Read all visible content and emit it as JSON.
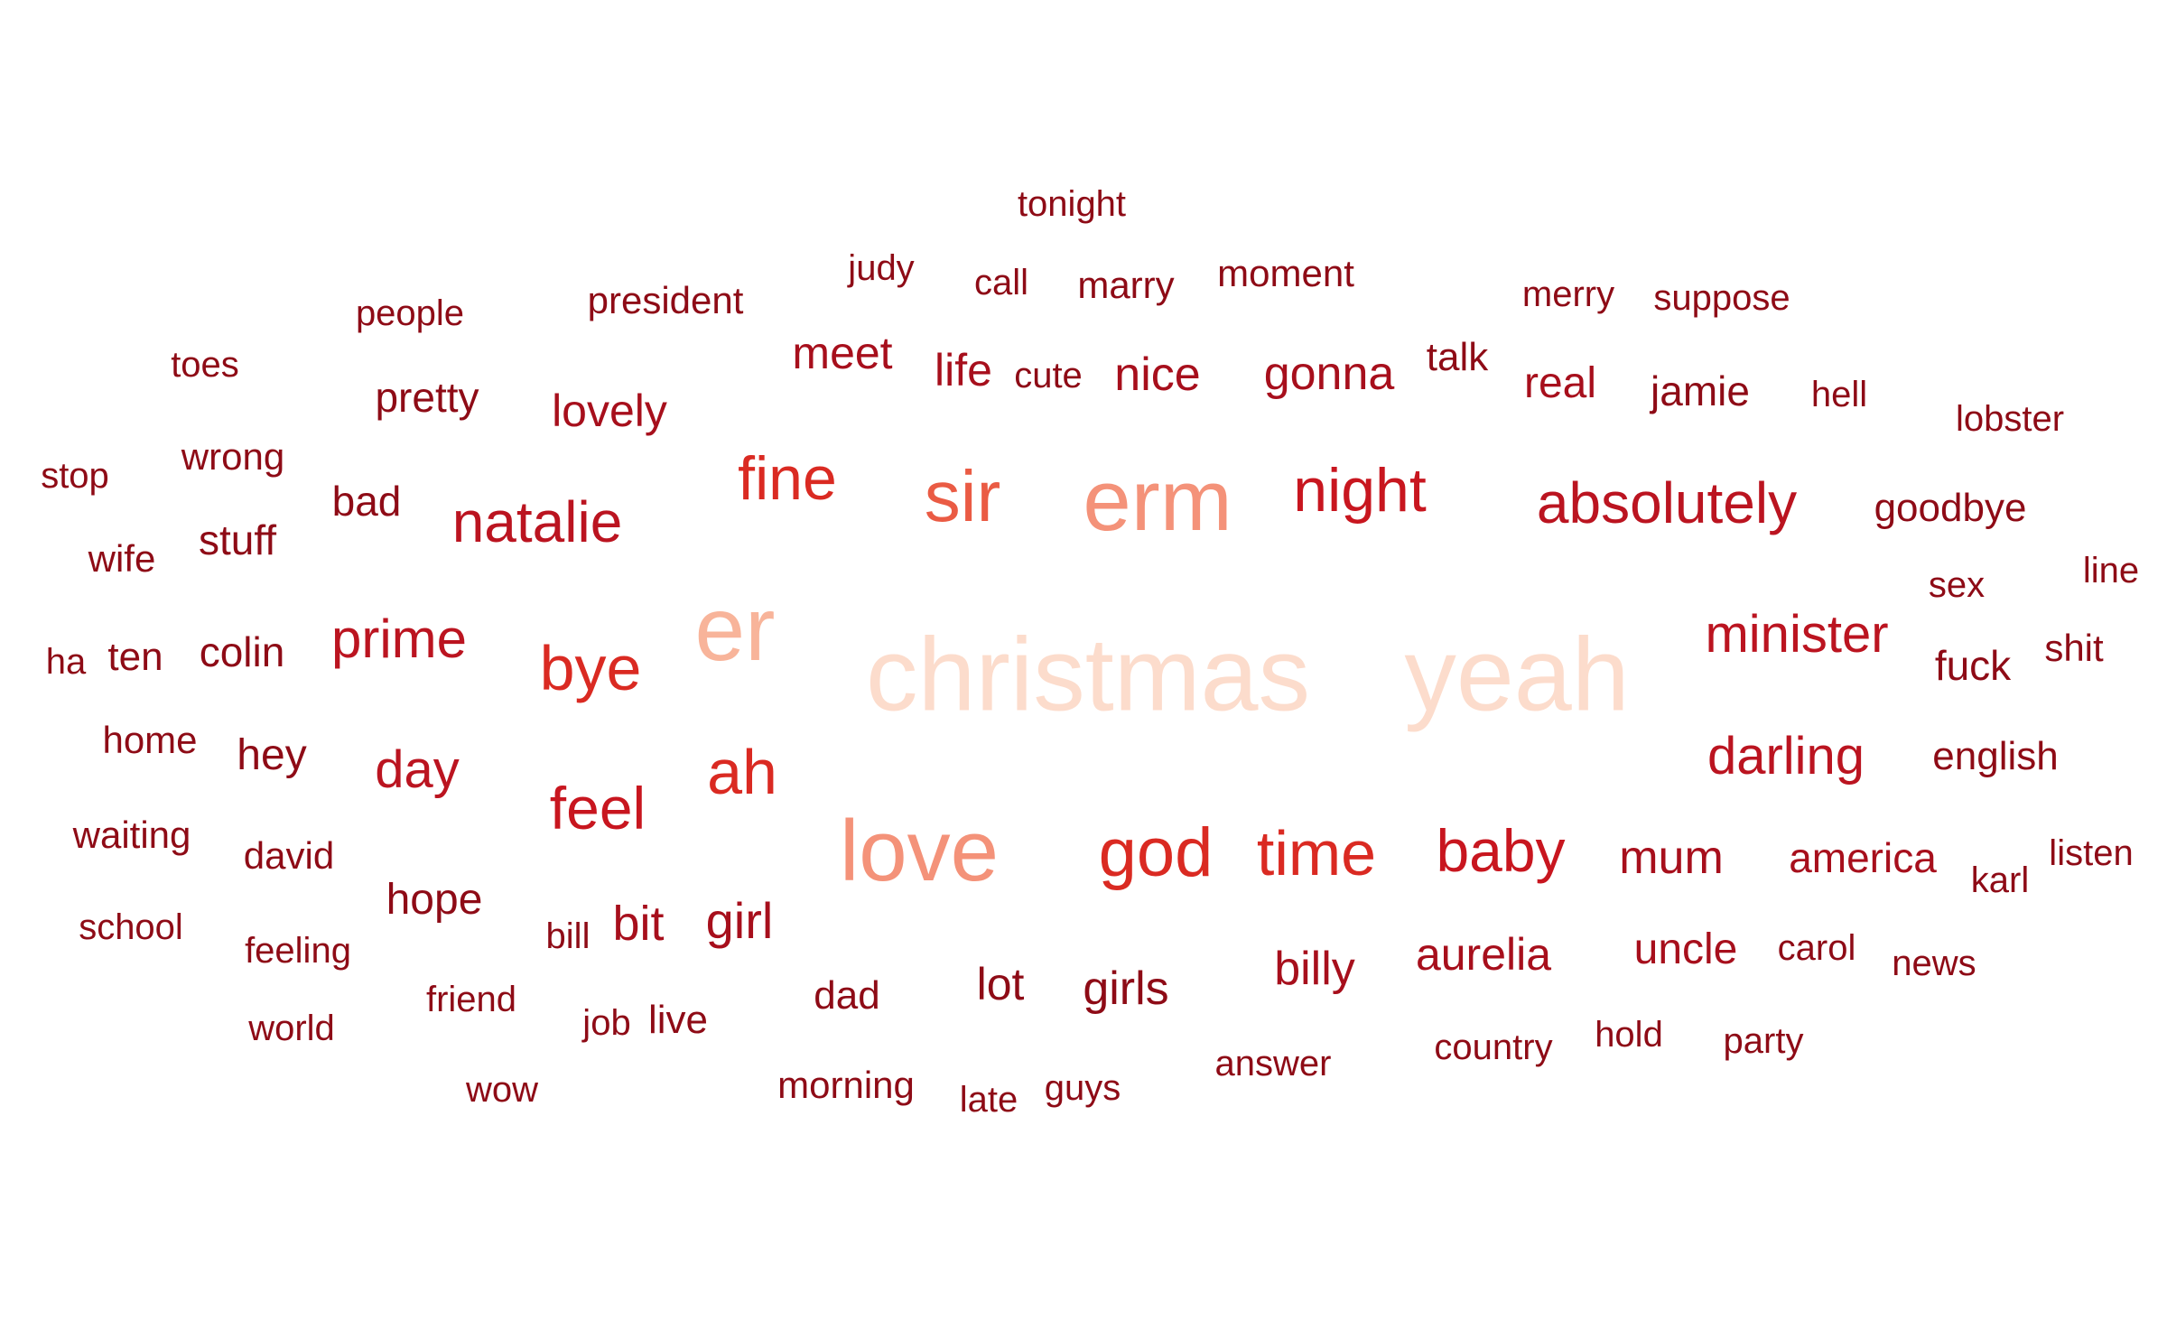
{
  "wordcloud": {
    "palette": {
      "lightest": "#fcdccc",
      "light": "#f8b49a",
      "medium_light": "#f49279",
      "medium": "#ea5b44",
      "strong": "#da2a22",
      "dark": "#bb1420",
      "darker": "#a70f1c",
      "darkest": "#8e0b16"
    },
    "words": [
      {
        "text": "christmas",
        "color": "#fcdccc"
      },
      {
        "text": "yeah",
        "color": "#fcdccc"
      },
      {
        "text": "er",
        "color": "#f8b49a"
      },
      {
        "text": "erm",
        "color": "#f49279"
      },
      {
        "text": "love",
        "color": "#f49279"
      },
      {
        "text": "sir",
        "color": "#ea5b44"
      },
      {
        "text": "god",
        "color": "#da2a22"
      },
      {
        "text": "time",
        "color": "#da2a22"
      },
      {
        "text": "baby",
        "color": "#c8161f"
      },
      {
        "text": "fine",
        "color": "#da2a22"
      },
      {
        "text": "night",
        "color": "#c8161f"
      },
      {
        "text": "absolutely",
        "color": "#bb1420"
      },
      {
        "text": "natalie",
        "color": "#bb1420"
      },
      {
        "text": "bye",
        "color": "#da2a22"
      },
      {
        "text": "ah",
        "color": "#da2a22"
      },
      {
        "text": "feel",
        "color": "#c8161f"
      },
      {
        "text": "prime",
        "color": "#bb1420"
      },
      {
        "text": "minister",
        "color": "#bb1420"
      },
      {
        "text": "darling",
        "color": "#bb1420"
      },
      {
        "text": "day",
        "color": "#bb1420"
      },
      {
        "text": "mum",
        "color": "#a70f1c"
      },
      {
        "text": "girl",
        "color": "#a70f1c"
      },
      {
        "text": "bit",
        "color": "#a70f1c"
      },
      {
        "text": "nice",
        "color": "#a70f1c"
      },
      {
        "text": "gonna",
        "color": "#a70f1c"
      },
      {
        "text": "meet",
        "color": "#a70f1c"
      },
      {
        "text": "life",
        "color": "#a70f1c"
      },
      {
        "text": "lovely",
        "color": "#a70f1c"
      },
      {
        "text": "real",
        "color": "#a70f1c"
      },
      {
        "text": "billy",
        "color": "#a70f1c"
      },
      {
        "text": "aurelia",
        "color": "#a70f1c"
      },
      {
        "text": "uncle",
        "color": "#a70f1c"
      },
      {
        "text": "america",
        "color": "#a70f1c"
      },
      {
        "text": "lot",
        "color": "#8e0b16"
      },
      {
        "text": "girls",
        "color": "#8e0b16"
      },
      {
        "text": "hope",
        "color": "#8e0b16"
      },
      {
        "text": "colin",
        "color": "#8e0b16"
      },
      {
        "text": "hey",
        "color": "#8e0b16"
      },
      {
        "text": "pretty",
        "color": "#8e0b16"
      },
      {
        "text": "bad",
        "color": "#8e0b16"
      },
      {
        "text": "stuff",
        "color": "#8e0b16"
      },
      {
        "text": "jamie",
        "color": "#8e0b16"
      },
      {
        "text": "goodbye",
        "color": "#8e0b16"
      },
      {
        "text": "fuck",
        "color": "#8e0b16"
      },
      {
        "text": "english",
        "color": "#8e0b16"
      },
      {
        "text": "talk",
        "color": "#8e0b16"
      },
      {
        "text": "dad",
        "color": "#8e0b16"
      },
      {
        "text": "ten",
        "color": "#8e0b16"
      },
      {
        "text": "tonight",
        "color": "#8e0b16"
      },
      {
        "text": "judy",
        "color": "#8e0b16"
      },
      {
        "text": "call",
        "color": "#8e0b16"
      },
      {
        "text": "marry",
        "color": "#8e0b16"
      },
      {
        "text": "moment",
        "color": "#8e0b16"
      },
      {
        "text": "merry",
        "color": "#8e0b16"
      },
      {
        "text": "suppose",
        "color": "#8e0b16"
      },
      {
        "text": "people",
        "color": "#8e0b16"
      },
      {
        "text": "president",
        "color": "#8e0b16"
      },
      {
        "text": "toes",
        "color": "#8e0b16"
      },
      {
        "text": "cute",
        "color": "#8e0b16"
      },
      {
        "text": "hell",
        "color": "#8e0b16"
      },
      {
        "text": "lobster",
        "color": "#8e0b16"
      },
      {
        "text": "stop",
        "color": "#8e0b16"
      },
      {
        "text": "wrong",
        "color": "#8e0b16"
      },
      {
        "text": "wife",
        "color": "#8e0b16"
      },
      {
        "text": "line",
        "color": "#8e0b16"
      },
      {
        "text": "sex",
        "color": "#8e0b16"
      },
      {
        "text": "ha",
        "color": "#8e0b16"
      },
      {
        "text": "shit",
        "color": "#8e0b16"
      },
      {
        "text": "home",
        "color": "#8e0b16"
      },
      {
        "text": "waiting",
        "color": "#8e0b16"
      },
      {
        "text": "david",
        "color": "#8e0b16"
      },
      {
        "text": "listen",
        "color": "#8e0b16"
      },
      {
        "text": "karl",
        "color": "#8e0b16"
      },
      {
        "text": "school",
        "color": "#8e0b16"
      },
      {
        "text": "bill",
        "color": "#8e0b16"
      },
      {
        "text": "carol",
        "color": "#8e0b16"
      },
      {
        "text": "feeling",
        "color": "#8e0b16"
      },
      {
        "text": "news",
        "color": "#8e0b16"
      },
      {
        "text": "friend",
        "color": "#8e0b16"
      },
      {
        "text": "world",
        "color": "#8e0b16"
      },
      {
        "text": "job",
        "color": "#8e0b16"
      },
      {
        "text": "live",
        "color": "#8e0b16"
      },
      {
        "text": "country",
        "color": "#8e0b16"
      },
      {
        "text": "hold",
        "color": "#8e0b16"
      },
      {
        "text": "party",
        "color": "#8e0b16"
      },
      {
        "text": "answer",
        "color": "#8e0b16"
      },
      {
        "text": "wow",
        "color": "#8e0b16"
      },
      {
        "text": "morning",
        "color": "#8e0b16"
      },
      {
        "text": "late",
        "color": "#8e0b16"
      },
      {
        "text": "guys",
        "color": "#8e0b16"
      }
    ]
  }
}
